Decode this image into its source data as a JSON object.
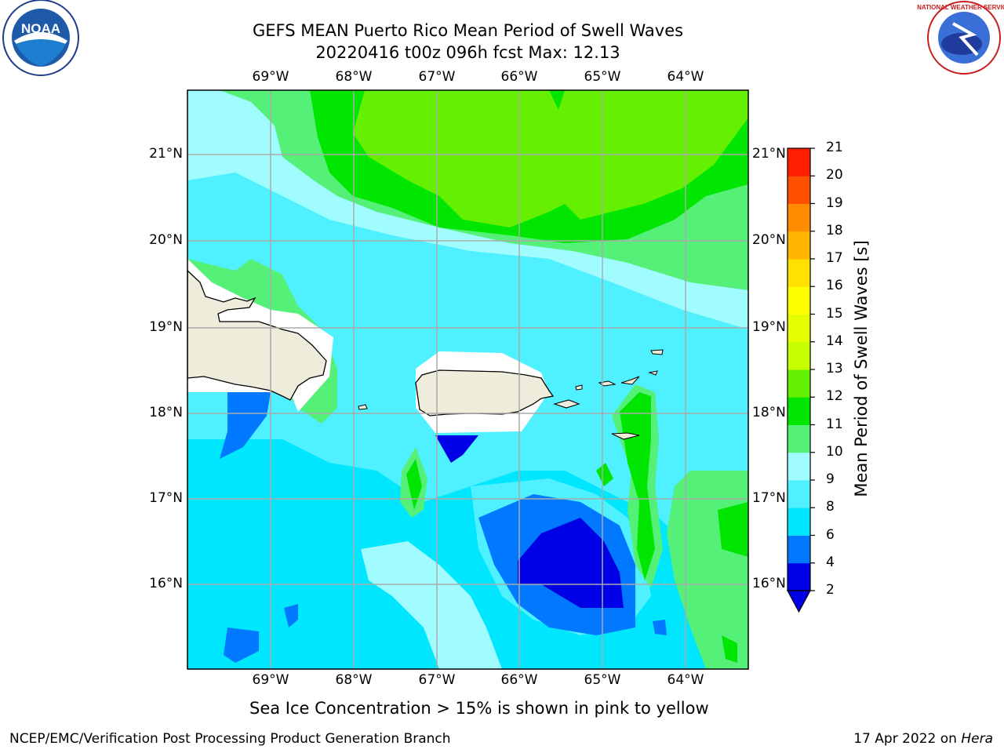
{
  "title_line1": "GEFS MEAN Puerto Rico Mean Period of Swell Waves",
  "title_line2": "20220416 t00z 096h fcst   Max: 12.13",
  "lon_labels": [
    "69°W",
    "68°W",
    "67°W",
    "66°W",
    "65°W",
    "64°W"
  ],
  "lat_labels": [
    "21°N",
    "20°N",
    "19°N",
    "18°N",
    "17°N",
    "16°N"
  ],
  "colorbar": {
    "title": "Mean Period of Swell Waves [s]",
    "ticks": [
      "2",
      "4",
      "6",
      "8",
      "9",
      "10",
      "11",
      "12",
      "13",
      "14",
      "15",
      "16",
      "17",
      "18",
      "19",
      "20",
      "21"
    ],
    "colors": [
      "#0000e6",
      "#0078ff",
      "#00e6ff",
      "#4ff0ff",
      "#a0fcff",
      "#55f078",
      "#00e600",
      "#64f000",
      "#c8ff00",
      "#e6ff00",
      "#ffff00",
      "#ffe100",
      "#ffb400",
      "#ff8c00",
      "#ff5000",
      "#ff1e00"
    ],
    "extend_color": "#0000e6"
  },
  "map_colors": {
    "land": "#eeecdb",
    "masked": "#ffffff",
    "grid": "#aaaaaa"
  },
  "note": "Sea Ice Concentration > 15% is shown in pink to yellow",
  "footer_left": "NCEP/EMC/Verification Post Processing Product Generation Branch",
  "footer_right_date": "17 Apr 2022 on ",
  "footer_right_host": "Hera",
  "logos": {
    "left": "NOAA",
    "right": "NATIONAL WEATHER SERVICE"
  }
}
